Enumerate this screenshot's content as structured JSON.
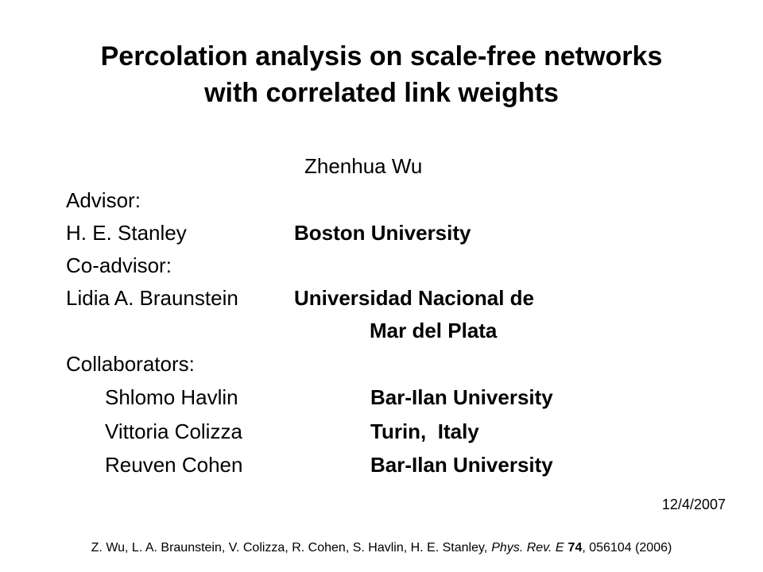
{
  "title": [
    "Percolation analysis on scale-free networks",
    "with correlated link weights"
  ],
  "author": "Zhenhua Wu",
  "advisors": [
    {
      "role": "Advisor:",
      "name": "H. E. Stanley",
      "affiliation": [
        "Boston University"
      ]
    },
    {
      "role": "Co-advisor:",
      "name": "Lidia A. Braunstein",
      "affiliation": [
        "Universidad Nacional de",
        "Mar del Plata"
      ]
    }
  ],
  "collaborators": {
    "heading": "Collaborators:",
    "people": [
      {
        "name": "Shlomo Havlin",
        "affiliation": "Bar-Ilan University"
      },
      {
        "name": "Vittoria Colizza",
        "affiliation": "Turin,  Italy"
      },
      {
        "name": "Reuven Cohen",
        "affiliation": "Bar-Ilan University"
      }
    ]
  },
  "date": "12/4/2007",
  "citation": {
    "authors": "Z. Wu, L. A. Braunstein, V. Colizza, R. Cohen, S. Havlin, H. E. Stanley,",
    "journal": "Phys. Rev. E",
    "volume": "74",
    "rest": ", 056104 (2006)"
  }
}
